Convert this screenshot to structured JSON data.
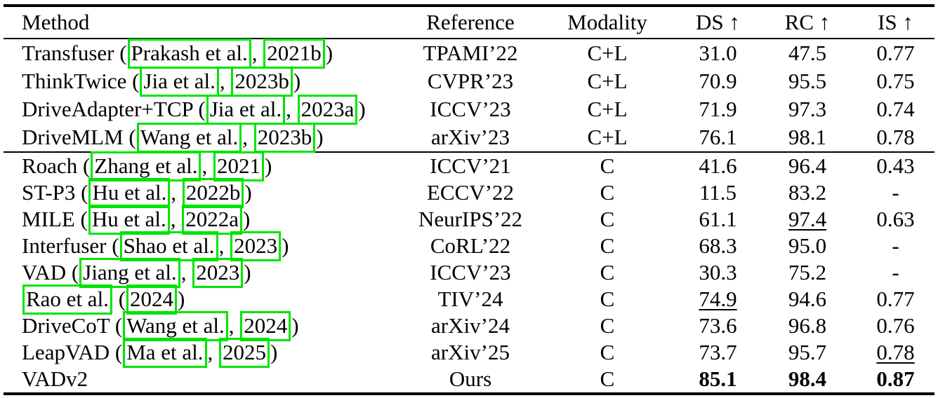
{
  "link_box_color": "#00E400",
  "table": {
    "columns": [
      "Method",
      "Reference",
      "Modality",
      "DS ↑",
      "RC ↑",
      "IS ↑"
    ],
    "groups": [
      {
        "rows": [
          {
            "method": {
              "prefix": "Transfuser (",
              "author": "Prakash et al.",
              "sep": ", ",
              "year": "2021b",
              "suffix": ")"
            },
            "reference": "TPAMI’22",
            "modality": "C+L",
            "ds": "31.0",
            "rc": "47.5",
            "is": "0.77"
          },
          {
            "method": {
              "prefix": "ThinkTwice (",
              "author": "Jia et al.",
              "sep": ", ",
              "year": "2023b",
              "suffix": ")"
            },
            "reference": "CVPR’23",
            "modality": "C+L",
            "ds": "70.9",
            "rc": "95.5",
            "is": "0.75"
          },
          {
            "method": {
              "prefix": "DriveAdapter+TCP (",
              "author": "Jia et al.",
              "sep": ", ",
              "year": "2023a",
              "suffix": ")"
            },
            "reference": "ICCV’23",
            "modality": "C+L",
            "ds": "71.9",
            "rc": "97.3",
            "is": "0.74"
          },
          {
            "method": {
              "prefix": "DriveMLM (",
              "author": "Wang et al.",
              "sep": ", ",
              "year": "2023b",
              "suffix": ")"
            },
            "reference": "arXiv’23",
            "modality": "C+L",
            "ds": "76.1",
            "rc": "98.1",
            "is": "0.78"
          }
        ]
      },
      {
        "rows": [
          {
            "method": {
              "prefix": "Roach (",
              "author": "Zhang et al.",
              "sep": ", ",
              "year": "2021",
              "suffix": ")"
            },
            "reference": "ICCV’21",
            "modality": "C",
            "ds": "41.6",
            "rc": "96.4",
            "is": "0.43"
          },
          {
            "method": {
              "prefix": "ST-P3 (",
              "author": "Hu et al.",
              "sep": ", ",
              "year": "2022b",
              "suffix": ")"
            },
            "reference": "ECCV’22",
            "modality": "C",
            "ds": "11.5",
            "rc": "83.2",
            "is": "-"
          },
          {
            "method": {
              "prefix": "MILE (",
              "author": "Hu et al.",
              "sep": ", ",
              "year": "2022a",
              "suffix": ")"
            },
            "reference": "NeurIPS’22",
            "modality": "C",
            "ds": "61.1",
            "rc": "97.4",
            "rc_style": "underline",
            "is": "0.63"
          },
          {
            "method": {
              "prefix": "Interfuser (",
              "author": "Shao et al.",
              "sep": ", ",
              "year": "2023",
              "suffix": ")"
            },
            "reference": "CoRL’22",
            "modality": "C",
            "ds": "68.3",
            "rc": "95.0",
            "is": "-"
          },
          {
            "method": {
              "prefix": "VAD (",
              "author": "Jiang et al.",
              "sep": ", ",
              "year": "2023",
              "suffix": ")"
            },
            "reference": "ICCV’23",
            "modality": "C",
            "ds": "30.3",
            "rc": "75.2",
            "is": "-"
          },
          {
            "method": {
              "prefix": "",
              "author": "Rao et al.",
              "sep": " (",
              "year": "2024",
              "suffix": ")"
            },
            "reference": "TIV’24",
            "modality": "C",
            "ds": "74.9",
            "ds_style": "underline",
            "rc": "94.6",
            "is": "0.77"
          },
          {
            "method": {
              "prefix": "DriveCoT (",
              "author": "Wang et al.",
              "sep": ", ",
              "year": "2024",
              "suffix": ")"
            },
            "reference": "arXiv’24",
            "modality": "C",
            "ds": "73.6",
            "rc": "96.8",
            "is": "0.76"
          },
          {
            "method": {
              "prefix": "LeapVAD (",
              "author": "Ma et al.",
              "sep": ", ",
              "year": "2025",
              "suffix": ")"
            },
            "reference": "arXiv’25",
            "modality": "C",
            "ds": "73.7",
            "rc": "95.7",
            "is": "0.78",
            "is_style": "underline"
          },
          {
            "method": {
              "prefix": "VADv2"
            },
            "reference": "Ours",
            "modality": "C",
            "ds": "85.1",
            "ds_style": "bold",
            "rc": "98.4",
            "rc_style": "bold",
            "is": "0.87",
            "is_style": "bold"
          }
        ]
      }
    ]
  }
}
